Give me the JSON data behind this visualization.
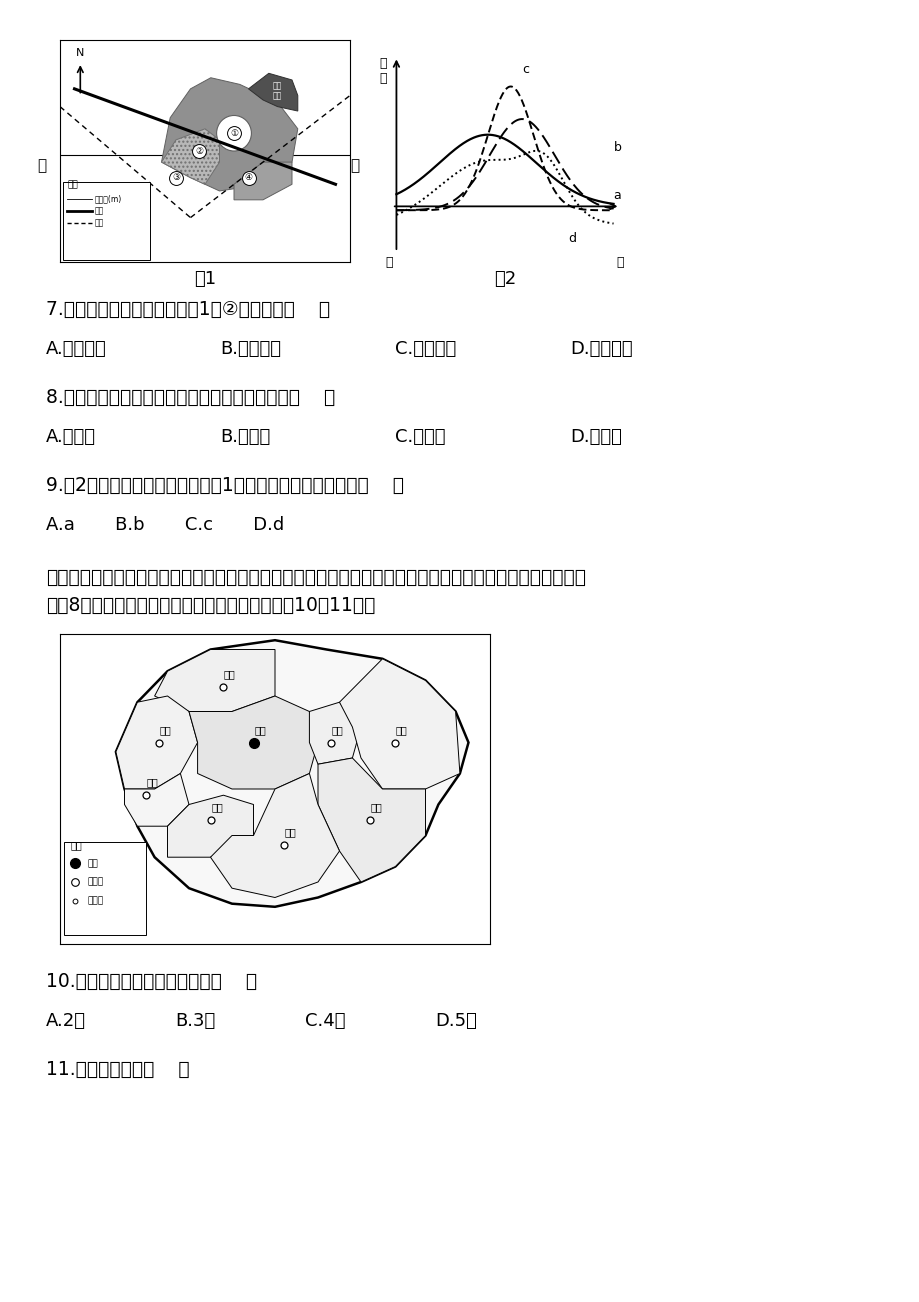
{
  "bg_color": "#ffffff",
  "text_color": "#000000",
  "q7_text": "7.高级住宅区最可能分布在图1中②功能区的（    ）",
  "q7_opts_a": "A.东北方向",
  "q7_opts_b": "B.西南方向",
  "q7_opts_c": "C.西北方向",
  "q7_opts_d": "D.东南方向",
  "q8_text": "8.若图中城市布局合理，则该地主导风向可能为（    ）",
  "q8_opts_a": "A.西南风",
  "q8_opts_b": "B.偏南风",
  "q8_opts_c": "C.偏西风",
  "q8_opts_d": "D.偏东风",
  "q9_text": "9.图2中的曲线，能准确反应出图1中甲乙一线地租变化的是（    ）",
  "q9_opts": "A.a       B.b       C.c       D.d",
  "intro_line1": "武汉城市圈是指以中部地区最大城市武汉为圆心，覆盖黄石、鄂州、黄冈、孝感、咸宁、仙桃、潜江、天门等",
  "intro_line2": "周边8个大中型城市所组成的城市群。据此完成第10～11题。",
  "fig1_caption": "图1",
  "fig2_caption": "图2",
  "q10_text": "10.图中城市群，按等级可分为（    ）",
  "q10_opts_a": "A.2级",
  "q10_opts_b": "B.3级",
  "q10_opts_c": "C.4级",
  "q10_opts_d": "D.5级",
  "q11_text": "11.武汉都市圈中（    ）"
}
